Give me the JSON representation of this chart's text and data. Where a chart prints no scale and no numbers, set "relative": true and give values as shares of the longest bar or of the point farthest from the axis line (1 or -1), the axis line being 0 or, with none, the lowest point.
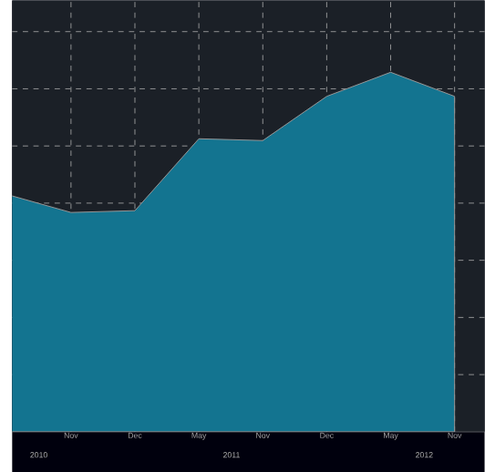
{
  "chart_data": {
    "type": "area",
    "relative": true,
    "categories": [
      null,
      "Nov",
      "Dec",
      "May",
      "Nov",
      "Dec",
      "May",
      "Nov"
    ],
    "values": [
      0.66,
      0.61,
      0.615,
      0.815,
      0.81,
      0.933,
      1,
      0.933
    ],
    "color": "#137490",
    "grid": true,
    "annotations": [
      "2010",
      "2011",
      "2012"
    ]
  }
}
